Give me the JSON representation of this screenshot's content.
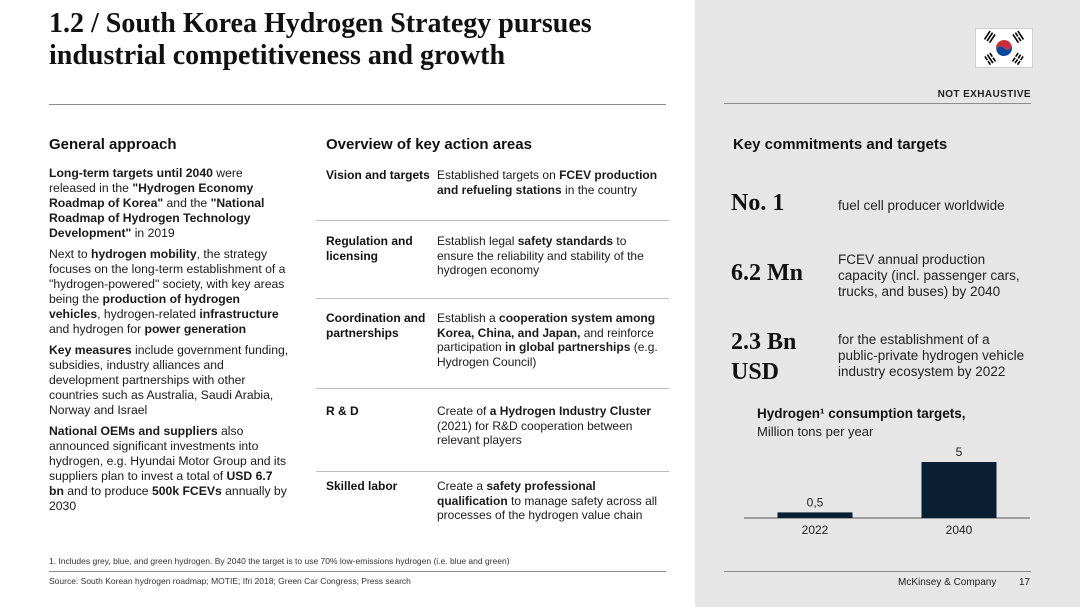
{
  "title": "1.2 / South Korea Hydrogen Strategy pursues industrial competitiveness and growth",
  "not_exhaustive": "NOT EXHAUSTIVE",
  "flag_icon": "south-korea-flag-icon",
  "general": {
    "heading": "General approach",
    "paragraphs": [
      [
        {
          "b": true,
          "t": "Long-term targets until 2040"
        },
        {
          "b": false,
          "t": " were released in the "
        },
        {
          "b": true,
          "t": "\"Hydrogen Economy Roadmap of Korea\""
        },
        {
          "b": false,
          "t": " and the "
        },
        {
          "b": true,
          "t": "\"National Roadmap of Hydrogen Technology Development\""
        },
        {
          "b": false,
          "t": " in 2019"
        }
      ],
      [
        {
          "b": false,
          "t": "Next to "
        },
        {
          "b": true,
          "t": "hydrogen mobility"
        },
        {
          "b": false,
          "t": ", the strategy focuses on the long-term establishment of a \"hydrogen-powered\" society, with key areas being the "
        },
        {
          "b": true,
          "t": "production of hydrogen vehicles"
        },
        {
          "b": false,
          "t": ", hydrogen-related "
        },
        {
          "b": true,
          "t": "infrastructure"
        },
        {
          "b": false,
          "t": " and hydrogen for "
        },
        {
          "b": true,
          "t": "power generation"
        }
      ],
      [
        {
          "b": true,
          "t": "Key measures"
        },
        {
          "b": false,
          "t": " include government funding, subsidies, industry alliances and development partnerships with other countries such as Australia, Saudi Arabia, Norway and Israel"
        }
      ],
      [
        {
          "b": true,
          "t": "National OEMs and suppliers"
        },
        {
          "b": false,
          "t": " also announced significant investments into hydrogen, e.g. Hyundai Motor Group and its suppliers plan to invest a total of "
        },
        {
          "b": true,
          "t": "USD 6.7 bn"
        },
        {
          "b": false,
          "t": " and to produce "
        },
        {
          "b": true,
          "t": "500k FCEVs"
        },
        {
          "b": false,
          "t": " annually by 2030"
        }
      ]
    ]
  },
  "overview": {
    "heading": "Overview of key action areas",
    "rows": [
      {
        "label": "Vision and targets",
        "desc": [
          {
            "b": false,
            "t": "Established targets on "
          },
          {
            "b": true,
            "t": "FCEV production and refueling stations"
          },
          {
            "b": false,
            "t": " in the country"
          }
        ]
      },
      {
        "label": "Regulation and licensing",
        "desc": [
          {
            "b": false,
            "t": "Establish legal "
          },
          {
            "b": true,
            "t": "safety standards"
          },
          {
            "b": false,
            "t": " to ensure the reliability and stability of the hydrogen economy"
          }
        ]
      },
      {
        "label": "Coordination and partnerships",
        "desc": [
          {
            "b": false,
            "t": "Establish a "
          },
          {
            "b": true,
            "t": "cooperation system among Korea, China, and Japan,"
          },
          {
            "b": false,
            "t": " and reinforce participation "
          },
          {
            "b": true,
            "t": "in global partnerships"
          },
          {
            "b": false,
            "t": " (e.g. Hydrogen Council)"
          }
        ]
      },
      {
        "label": "R & D",
        "desc": [
          {
            "b": false,
            "t": "Create of "
          },
          {
            "b": true,
            "t": "a Hydrogen Industry Cluster"
          },
          {
            "b": false,
            "t": " (2021) for R&D cooperation between relevant players"
          }
        ]
      },
      {
        "label": "Skilled labor",
        "desc": [
          {
            "b": false,
            "t": "Create a "
          },
          {
            "b": true,
            "t": "safety professional qualification"
          },
          {
            "b": false,
            "t": " to manage safety across all processes of the hydrogen value chain"
          }
        ]
      }
    ]
  },
  "commitments": {
    "heading": "Key commitments and targets",
    "items": [
      {
        "value": "No. 1",
        "desc": "fuel cell producer worldwide"
      },
      {
        "value": "6.2 Mn",
        "desc": "FCEV annual production capacity (incl. passenger cars, trucks, and buses) by 2040"
      },
      {
        "value": "2.3 Bn USD",
        "desc": "for the establishment of a public-private hydrogen vehicle industry ecosystem by 2022"
      }
    ]
  },
  "chart_data": {
    "type": "bar",
    "title": "Hydrogen¹ consumption targets,",
    "subtitle": "Million tons per year",
    "categories": [
      "2022",
      "2040"
    ],
    "values": [
      0.5,
      5
    ],
    "value_labels": [
      "0,5",
      "5"
    ],
    "color": "#0b1f33",
    "ylim": [
      0,
      5
    ],
    "grid": false
  },
  "footnote": "1.    Includes grey, blue, and green hydrogen. By 2040 the target is to use 70% low-emissions hydrogen (i.e. blue and green)",
  "source": "Source: South Korean hydrogen roadmap; MOTIE; Ifri 2018; Green Car Congress; Press search",
  "company": "McKinsey & Company",
  "page": "17"
}
